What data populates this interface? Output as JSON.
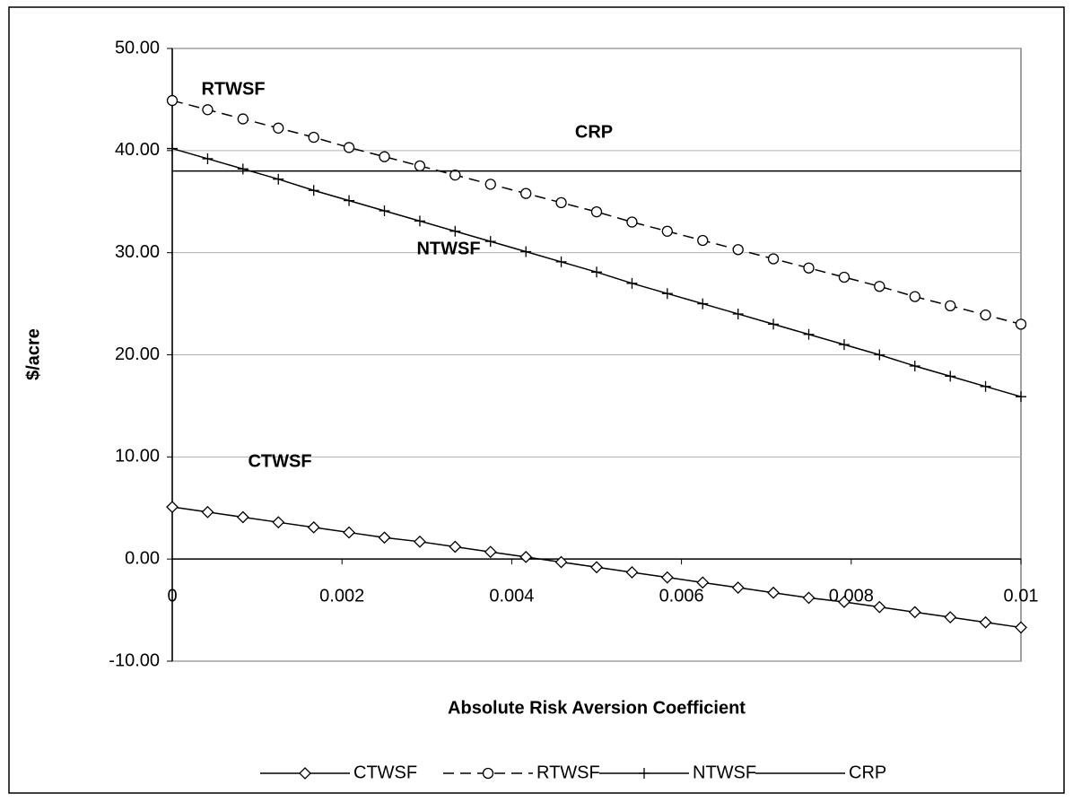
{
  "chart_data": {
    "type": "line",
    "x_label": "Absolute Risk Aversion Coefficient",
    "y_label": "$/acre",
    "annotations": [
      "RTWSF",
      "CRP",
      "NTWSF",
      "CTWSF"
    ],
    "x": [
      0,
      0.000417,
      0.000833,
      0.00125,
      0.001667,
      0.002083,
      0.0025,
      0.002917,
      0.003333,
      0.00375,
      0.004167,
      0.004583,
      0.005,
      0.005417,
      0.005833,
      0.00625,
      0.006667,
      0.007083,
      0.0075,
      0.007917,
      0.008333,
      0.00875,
      0.009167,
      0.009583,
      0.01
    ],
    "series": [
      {
        "name": "CTWSF",
        "color": "#000000",
        "marker": "diamond",
        "dashed": false,
        "values": [
          5.1,
          4.6,
          4.1,
          3.6,
          3.1,
          2.6,
          2.1,
          1.7,
          1.2,
          0.7,
          0.2,
          -0.3,
          -0.8,
          -1.3,
          -1.8,
          -2.3,
          -2.8,
          -3.3,
          -3.8,
          -4.2,
          -4.7,
          -5.2,
          -5.7,
          -6.2,
          -6.7
        ]
      },
      {
        "name": "RTWSF",
        "color": "#000000",
        "marker": "circle",
        "dashed": true,
        "values": [
          44.9,
          44.0,
          43.1,
          42.2,
          41.3,
          40.3,
          39.4,
          38.5,
          37.6,
          36.7,
          35.8,
          34.9,
          34.0,
          33.0,
          32.1,
          31.2,
          30.3,
          29.4,
          28.5,
          27.6,
          26.7,
          25.7,
          24.8,
          23.9,
          23.0
        ]
      },
      {
        "name": "NTWSF",
        "color": "#000000",
        "marker": "plus",
        "dashed": false,
        "values": [
          40.2,
          39.2,
          38.2,
          37.2,
          36.1,
          35.1,
          34.1,
          33.1,
          32.1,
          31.1,
          30.1,
          29.1,
          28.1,
          27.0,
          26.0,
          25.0,
          24.0,
          23.0,
          22.0,
          21.0,
          20.0,
          18.9,
          17.9,
          16.9,
          15.9
        ]
      },
      {
        "name": "CRP",
        "color": "#000000",
        "marker": "none",
        "dashed": false,
        "values": [
          38,
          38,
          38,
          38,
          38,
          38,
          38,
          38,
          38,
          38,
          38,
          38,
          38,
          38,
          38,
          38,
          38,
          38,
          38,
          38,
          38,
          38,
          38,
          38,
          38
        ]
      }
    ],
    "xlim": [
      0,
      0.01
    ],
    "xticks": [
      0,
      0.002,
      0.004,
      0.006,
      0.008,
      0.01
    ],
    "ylim": [
      -10,
      50
    ],
    "yticks": [
      {
        "value": -10,
        "label": "-10.00"
      },
      {
        "value": 0,
        "label": "0.00"
      },
      {
        "value": 10,
        "label": "10.00"
      },
      {
        "value": 20,
        "label": "20.00"
      },
      {
        "value": 30,
        "label": "30.00"
      },
      {
        "value": 40,
        "label": "40.00"
      },
      {
        "value": 50,
        "label": "50.00"
      }
    ],
    "grid": true,
    "legend": "bottom"
  }
}
